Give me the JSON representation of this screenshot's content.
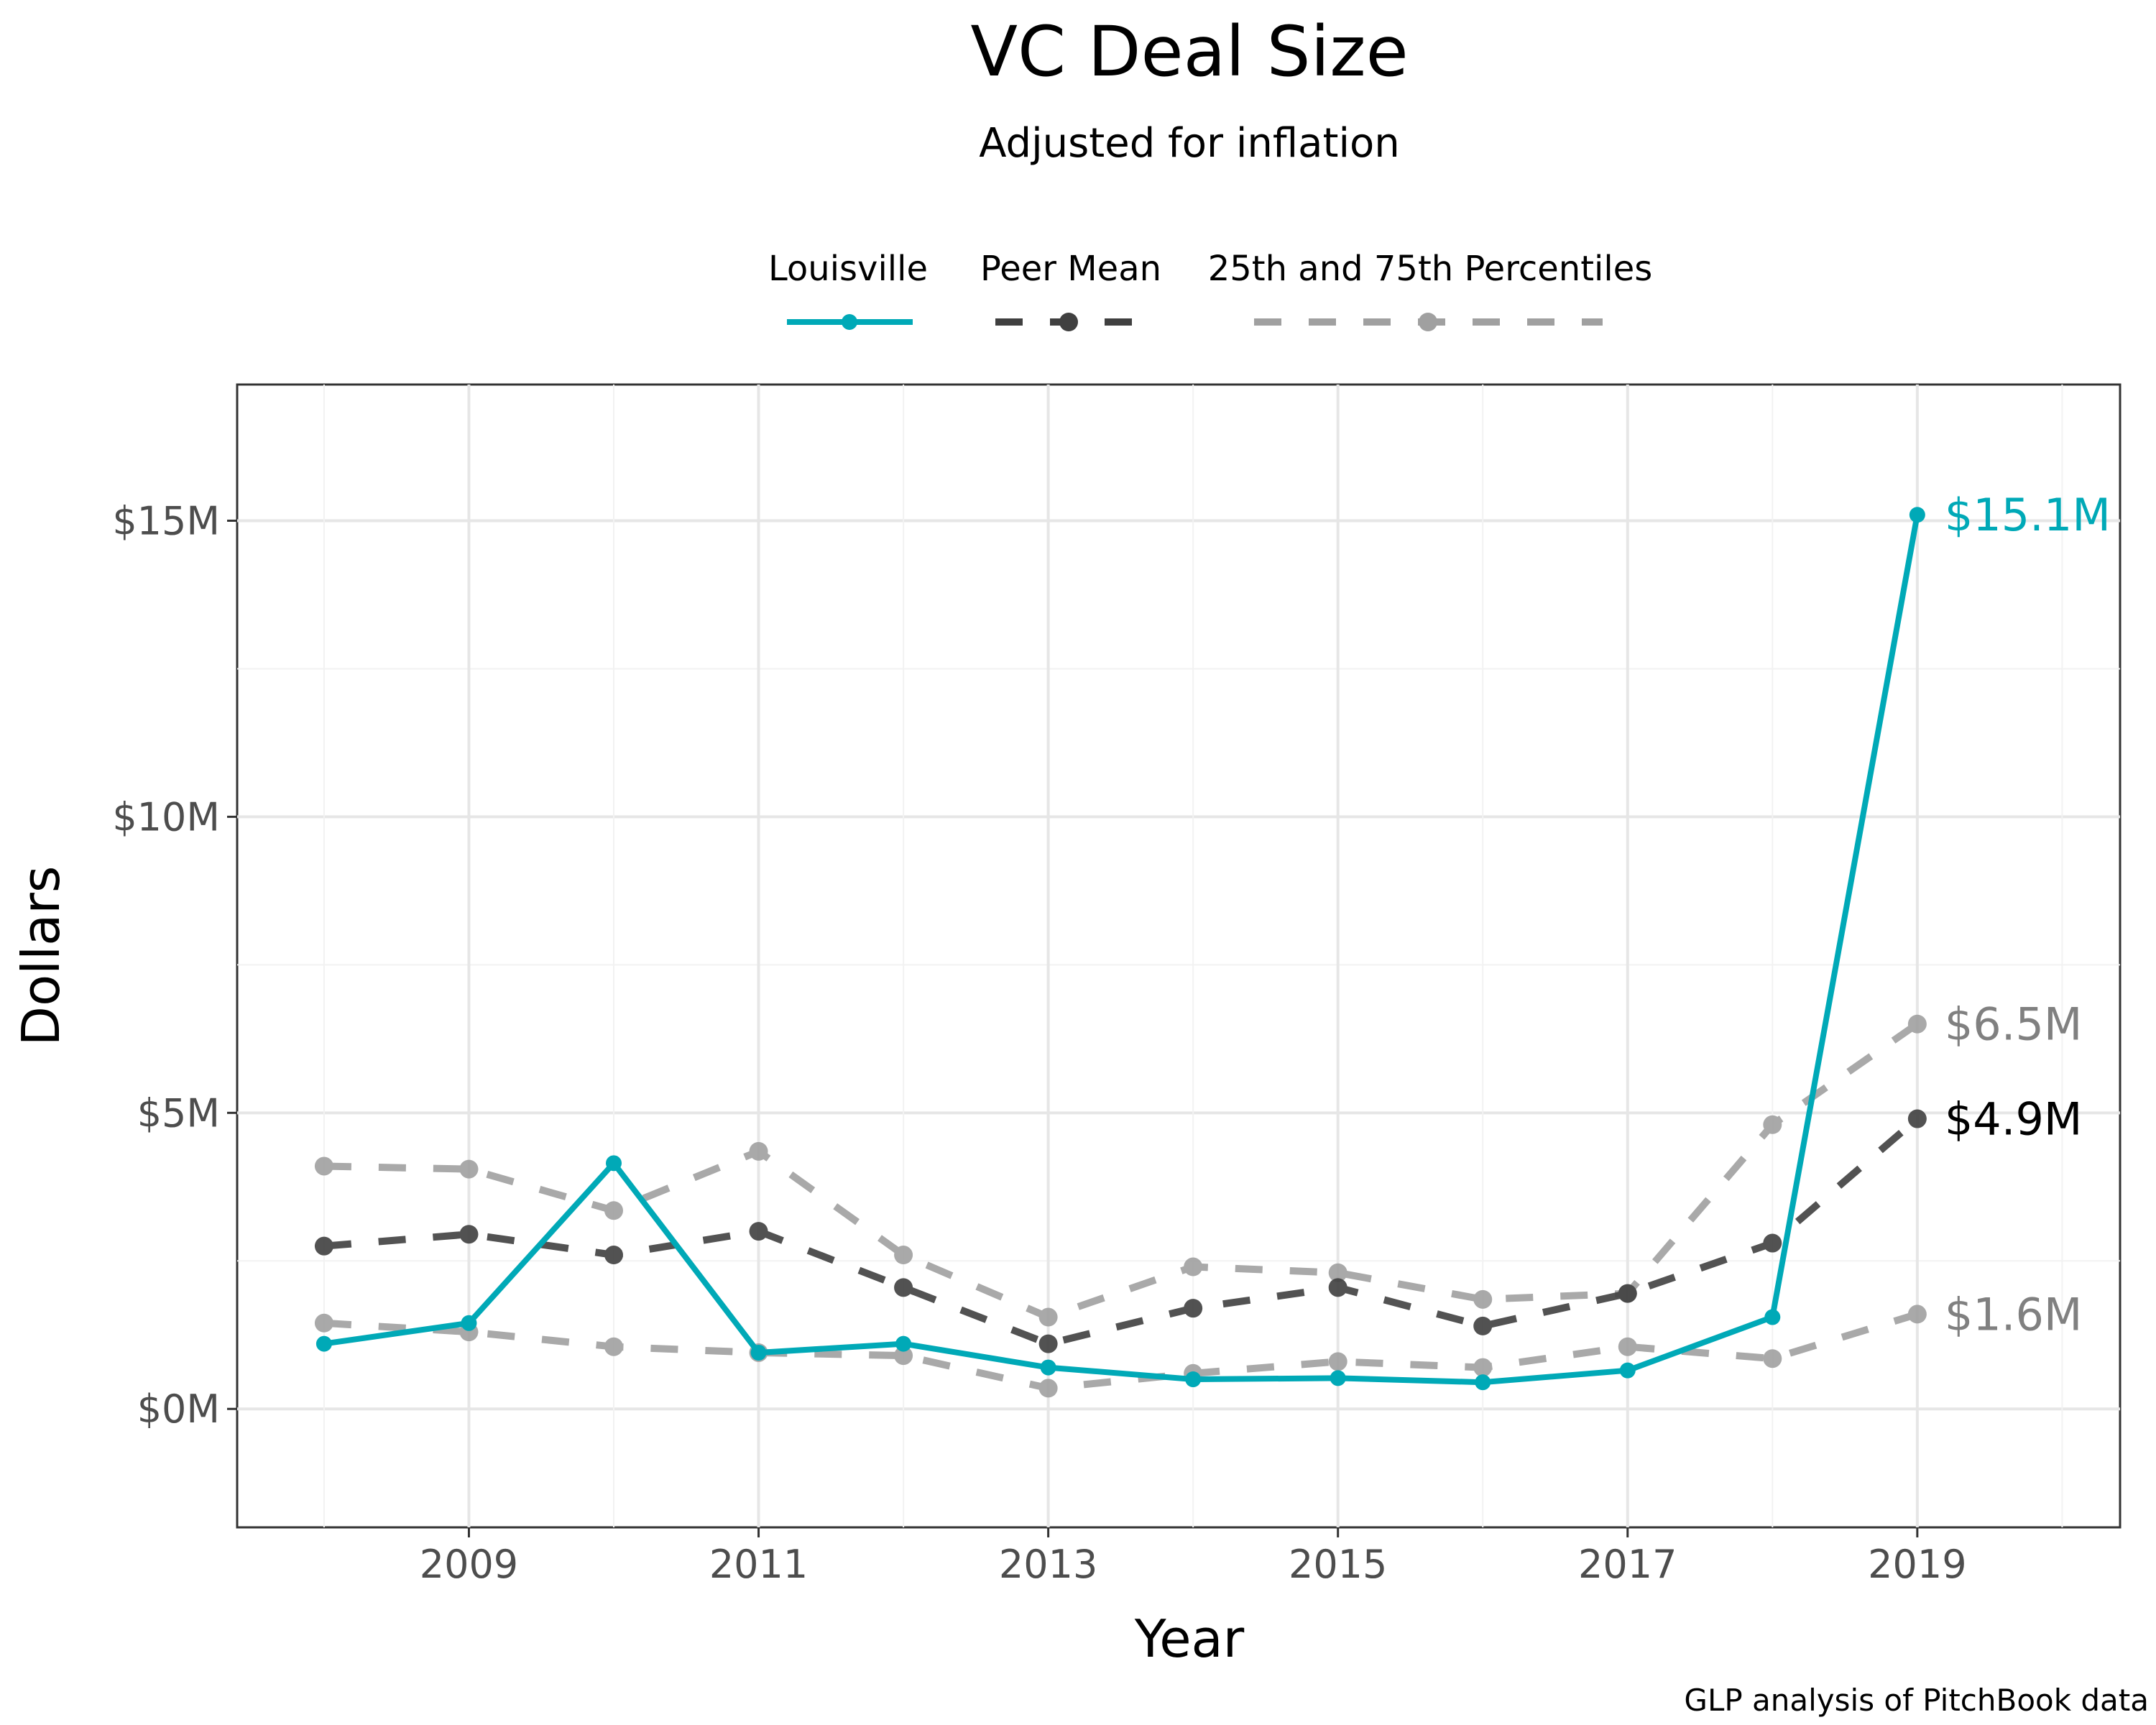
{
  "chart_data": {
    "type": "line",
    "title": "VC Deal Size",
    "subtitle": "Adjusted for inflation",
    "xlabel": "Year",
    "ylabel": "Dollars",
    "caption": "GLP analysis of PitchBook data",
    "x": [
      2008,
      2009,
      2010,
      2011,
      2012,
      2013,
      2014,
      2015,
      2016,
      2017,
      2018,
      2019
    ],
    "xlim": [
      2007.4,
      2020.4
    ],
    "ylim": [
      -2.0,
      17.3
    ],
    "x_ticks": [
      2009,
      2011,
      2013,
      2015,
      2017,
      2019
    ],
    "x_tick_labels": [
      "2009",
      "2011",
      "2013",
      "2015",
      "2017",
      "2019"
    ],
    "y_ticks": [
      0,
      5,
      10,
      15
    ],
    "y_tick_labels": [
      "$0M",
      "$5M",
      "$10M",
      "$15M"
    ],
    "grid": true,
    "legend_position": "top",
    "legend": [
      {
        "label": "Louisville",
        "color": "#00a9b7",
        "style": "solid"
      },
      {
        "label": "Peer Mean",
        "color": "#404040",
        "style": "dashed"
      },
      {
        "label": "25th and 75th Percentiles",
        "color": "#a0a0a0",
        "style": "dashed"
      }
    ],
    "series": [
      {
        "name": "Louisville",
        "color": "#00a9b7",
        "style": "solid",
        "values": [
          1.1,
          1.45,
          4.15,
          0.95,
          1.1,
          0.7,
          0.5,
          0.52,
          0.45,
          0.65,
          1.55,
          15.1
        ],
        "end_label": "$15.1M"
      },
      {
        "name": "Peer Mean",
        "color": "#404040",
        "style": "dashed",
        "values": [
          2.75,
          2.95,
          2.6,
          3.0,
          2.05,
          1.1,
          1.7,
          2.05,
          1.4,
          1.95,
          2.8,
          4.9
        ],
        "end_label": "$4.9M"
      },
      {
        "name": "75th Percentile",
        "color": "#a0a0a0",
        "style": "dashed",
        "values": [
          4.1,
          4.05,
          3.35,
          4.35,
          2.6,
          1.55,
          2.4,
          2.3,
          1.85,
          1.95,
          4.8,
          6.5
        ],
        "end_label": "$6.5M"
      },
      {
        "name": "25th Percentile",
        "color": "#a0a0a0",
        "style": "dashed",
        "values": [
          1.45,
          1.3,
          1.05,
          0.95,
          0.9,
          0.35,
          0.6,
          0.8,
          0.7,
          1.05,
          0.85,
          1.6
        ],
        "end_label": "$1.6M"
      }
    ]
  }
}
